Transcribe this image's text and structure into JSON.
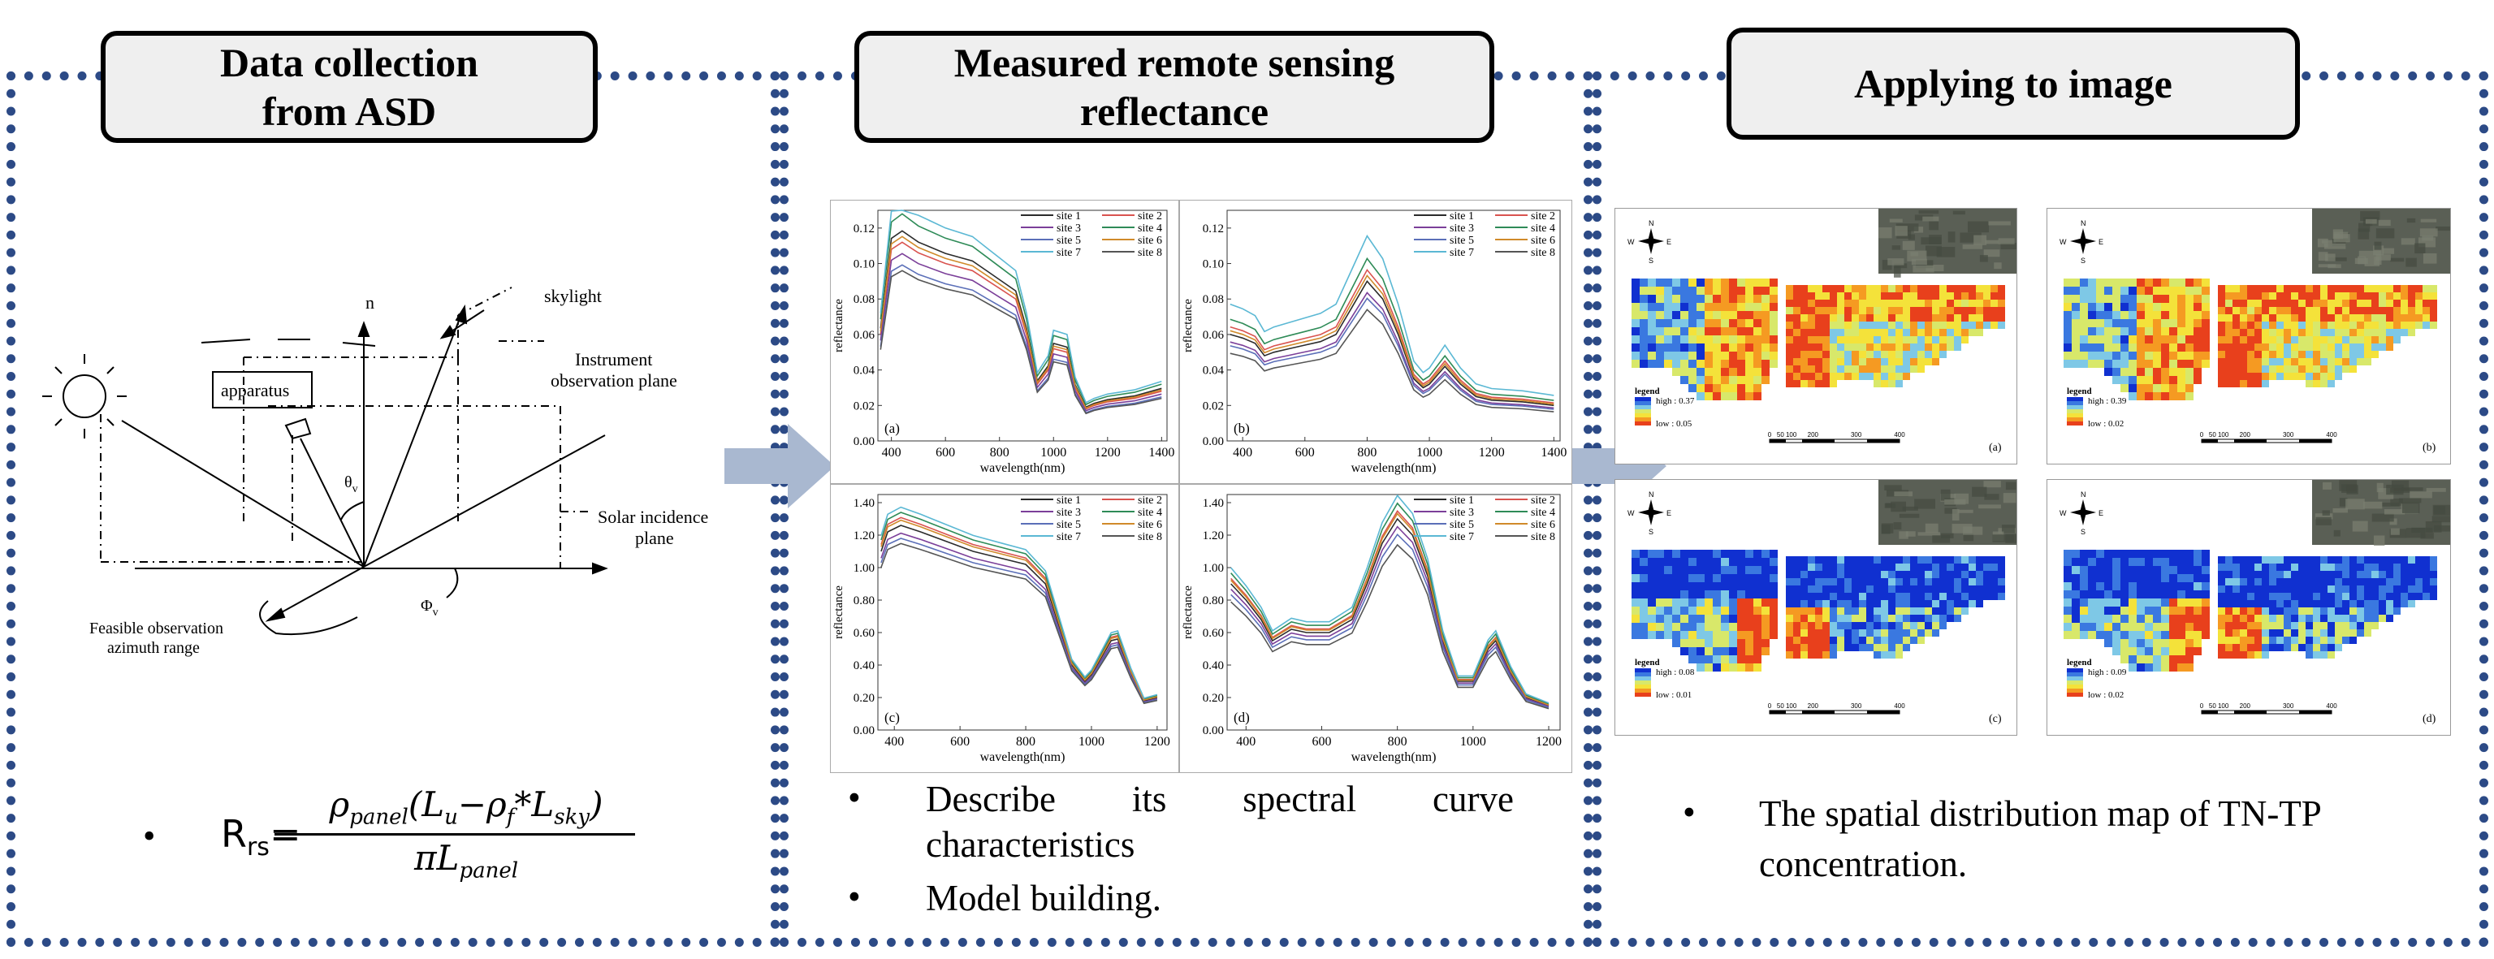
{
  "sections": [
    {
      "title_line1": "Data collection",
      "title_line2": "from ASD"
    },
    {
      "title_line1": "Measured remote sensing",
      "title_line2": "reflectance"
    },
    {
      "title_line1": "Applying to image",
      "title_line2": ""
    }
  ],
  "diagram": {
    "skylight": "skylight",
    "n": "n",
    "apparatus": "apparatus",
    "instrument_line1": "Instrument",
    "instrument_line2": "observation plane",
    "solar_line1": "Solar incidence",
    "solar_line2": "plane",
    "theta": "θ",
    "theta_sub": "v",
    "phi": "Φ",
    "phi_sub": "v",
    "feasible_line1": "Feasible observation",
    "feasible_line2": "azimuth range"
  },
  "formula": {
    "bullet": "•",
    "lhs": "R",
    "lhs_sub": "rs",
    "eq": "=",
    "num": "ρ",
    "num_sub": "panel",
    "num_rest": "(L",
    "lu_sub": "u",
    "minus": "−ρ",
    "f_sub": "f",
    "star": "*L",
    "sky_sub": "sky",
    "close": ")",
    "den": "πL",
    "den_sub": "panel"
  },
  "bullets_mid": {
    "b1_words": [
      "Describe",
      "its",
      "spectral",
      "curve"
    ],
    "b1_line2": "characteristics",
    "b2": "Model building.",
    "bullet": "•"
  },
  "bullet_right": {
    "line1": "The spatial distribution map of TN-TP",
    "line2": "concentration.",
    "bullet": "•"
  },
  "chart_data": [
    {
      "type": "line",
      "panel_label": "(a)",
      "xlabel": "wavelength(nm)",
      "ylabel": "reflectance",
      "xlim": [
        350,
        1420
      ],
      "ylim": [
        0,
        0.13
      ],
      "xticks": [
        "400",
        "600",
        "800",
        "1000",
        "1200",
        "1400"
      ],
      "yticks": [
        "0.00",
        "0.02",
        "0.04",
        "0.06",
        "0.08",
        "0.10",
        "0.12"
      ],
      "legend": [
        "site 1",
        "site 2",
        "site 3",
        "site 4",
        "site 5",
        "site 6",
        "site 7",
        "site 8"
      ],
      "colors": [
        "#2b2b2b",
        "#d9534f",
        "#7b3f99",
        "#2e8b57",
        "#5b6fb8",
        "#d08a2a",
        "#5bb8d4",
        "#555555"
      ],
      "x": [
        360,
        400,
        440,
        500,
        600,
        700,
        760,
        800,
        860,
        900,
        940,
        980,
        1000,
        1050,
        1080,
        1120,
        1150,
        1200,
        1300,
        1400
      ],
      "base": [
        0.06,
        0.108,
        0.112,
        0.106,
        0.1,
        0.096,
        0.09,
        0.086,
        0.08,
        0.06,
        0.032,
        0.04,
        0.052,
        0.05,
        0.03,
        0.018,
        0.02,
        0.022,
        0.024,
        0.028
      ],
      "offsets": [
        0.004,
        0.0,
        -0.004,
        0.01,
        -0.008,
        0.002,
        0.014,
        -0.01
      ]
    },
    {
      "type": "line",
      "panel_label": "(b)",
      "xlabel": "wavelength(nm)",
      "ylabel": "reflectance",
      "xlim": [
        350,
        1420
      ],
      "ylim": [
        0,
        0.13
      ],
      "xticks": [
        "400",
        "600",
        "800",
        "1000",
        "1200",
        "1400"
      ],
      "yticks": [
        "0.00",
        "0.02",
        "0.04",
        "0.06",
        "0.08",
        "0.10",
        "0.12"
      ],
      "legend": [
        "site 1",
        "site 2",
        "site 3",
        "site 4",
        "site 5",
        "site 6",
        "site 7",
        "site 8"
      ],
      "colors": [
        "#2b2b2b",
        "#d9534f",
        "#7b3f99",
        "#2e8b57",
        "#5b6fb8",
        "#d08a2a",
        "#5bb8d4",
        "#555555"
      ],
      "x": [
        360,
        400,
        440,
        470,
        500,
        550,
        600,
        650,
        700,
        750,
        800,
        850,
        900,
        950,
        980,
        1000,
        1050,
        1100,
        1150,
        1200,
        1300,
        1400
      ],
      "base": [
        0.06,
        0.058,
        0.055,
        0.048,
        0.05,
        0.052,
        0.054,
        0.056,
        0.06,
        0.075,
        0.09,
        0.08,
        0.06,
        0.035,
        0.03,
        0.032,
        0.042,
        0.032,
        0.025,
        0.023,
        0.022,
        0.02
      ],
      "offsets": [
        0.0,
        0.004,
        -0.004,
        0.008,
        -0.006,
        0.002,
        0.016,
        -0.01
      ]
    },
    {
      "type": "line",
      "panel_label": "(c)",
      "xlabel": "wavelength(nm)",
      "ylabel": "reflectance",
      "xlim": [
        350,
        1230
      ],
      "ylim": [
        0,
        1.45
      ],
      "xticks": [
        "400",
        "600",
        "800",
        "1000",
        "1200"
      ],
      "yticks": [
        "0.00",
        "0.20",
        "0.40",
        "0.60",
        "0.80",
        "1.00",
        "1.20",
        "1.40"
      ],
      "legend": [
        "site 1",
        "site 2",
        "site 3",
        "site 4",
        "site 5",
        "site 6",
        "site 7",
        "site 8"
      ],
      "colors": [
        "#2b2b2b",
        "#d9534f",
        "#7b3f99",
        "#2e8b57",
        "#5b6fb8",
        "#d08a2a",
        "#5bb8d4",
        "#555555"
      ],
      "x": [
        360,
        380,
        420,
        480,
        560,
        640,
        720,
        800,
        860,
        900,
        940,
        980,
        1000,
        1060,
        1080,
        1120,
        1160,
        1200
      ],
      "base": [
        1.1,
        1.22,
        1.26,
        1.22,
        1.16,
        1.1,
        1.06,
        1.02,
        0.9,
        0.65,
        0.4,
        0.3,
        0.34,
        0.55,
        0.56,
        0.35,
        0.18,
        0.2
      ],
      "offsets": [
        0.0,
        0.03,
        -0.03,
        0.05,
        -0.05,
        0.02,
        0.07,
        -0.07
      ]
    },
    {
      "type": "line",
      "panel_label": "(d)",
      "xlabel": "wavelength(nm)",
      "ylabel": "reflectance",
      "xlim": [
        350,
        1230
      ],
      "ylim": [
        0,
        1.45
      ],
      "xticks": [
        "400",
        "600",
        "800",
        "1000",
        "1200"
      ],
      "yticks": [
        "0.00",
        "0.20",
        "0.40",
        "0.60",
        "0.80",
        "1.00",
        "1.20",
        "1.40"
      ],
      "legend": [
        "site 1",
        "site 2",
        "site 3",
        "site 4",
        "site 5",
        "site 6",
        "site 7",
        "site 8"
      ],
      "colors": [
        "#2b2b2b",
        "#d9534f",
        "#7b3f99",
        "#2e8b57",
        "#5b6fb8",
        "#d08a2a",
        "#5bb8d4",
        "#555555"
      ],
      "x": [
        360,
        400,
        440,
        470,
        520,
        560,
        620,
        680,
        720,
        760,
        800,
        840,
        880,
        920,
        960,
        1000,
        1040,
        1060,
        1100,
        1140,
        1200
      ],
      "base": [
        0.9,
        0.8,
        0.68,
        0.55,
        0.62,
        0.6,
        0.6,
        0.68,
        0.9,
        1.15,
        1.3,
        1.2,
        0.95,
        0.55,
        0.3,
        0.3,
        0.5,
        0.55,
        0.35,
        0.2,
        0.15
      ],
      "offsets": [
        0.0,
        0.03,
        -0.03,
        0.06,
        -0.06,
        0.02,
        0.09,
        -0.1
      ]
    }
  ],
  "maps": [
    {
      "panel_label": "(a)",
      "legend_title": "legend",
      "high": "high : 0.37",
      "low": "low : 0.05"
    },
    {
      "panel_label": "(b)",
      "legend_title": "legend",
      "high": "high : 0.39",
      "low": "low : 0.02"
    },
    {
      "panel_label": "(c)",
      "legend_title": "legend",
      "high": "high : 0.08",
      "low": "low : 0.01"
    },
    {
      "panel_label": "(d)",
      "legend_title": "legend",
      "high": "high : 0.09",
      "low": "low : 0.02"
    }
  ],
  "compass": {
    "n": "N",
    "s": "S",
    "e": "E",
    "w": "W"
  },
  "scalebar": [
    "0",
    "50",
    "100",
    "200",
    "300",
    "400"
  ],
  "colors": {
    "frame": "#2c4a86",
    "arrow": "#a9b8d0",
    "title_bg": "#efefef"
  }
}
